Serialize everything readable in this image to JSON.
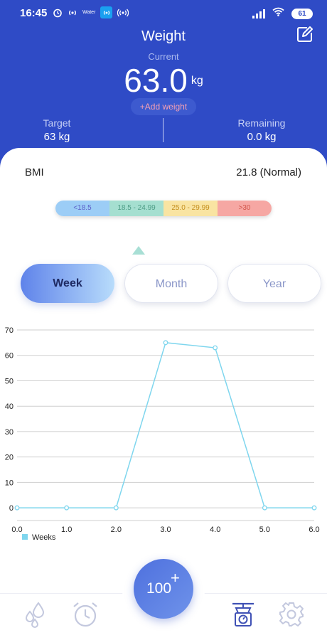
{
  "status_bar": {
    "time": "16:45",
    "water_label": "Water",
    "battery": "61"
  },
  "header": {
    "title": "Weight",
    "current_label": "Current",
    "current_value": "63.0",
    "current_unit": "kg",
    "add_weight_label": "+Add weight",
    "target_label": "Target",
    "target_value": "63 kg",
    "remaining_label": "Remaining",
    "remaining_value": "0.0 kg",
    "background_color": "#2f4bc6"
  },
  "bmi": {
    "label": "BMI",
    "value": "21.8 (Normal)",
    "ranges": [
      {
        "label": "<18.5",
        "color": "#9ccdf6"
      },
      {
        "label": "18.5 - 24.99",
        "color": "#a5dfd0"
      },
      {
        "label": "25.0 - 29.99",
        "color": "#f9e4a2"
      },
      {
        "label": ">30",
        "color": "#f6a7a3"
      }
    ]
  },
  "tabs": [
    {
      "label": "Week",
      "active": true
    },
    {
      "label": "Month",
      "active": false
    },
    {
      "label": "Year",
      "active": false
    }
  ],
  "chart_data": {
    "type": "line",
    "x": [
      0.0,
      1.0,
      2.0,
      3.0,
      4.0,
      5.0,
      6.0
    ],
    "series": [
      {
        "name": "Weeks",
        "values": [
          0,
          0,
          0,
          65,
          63,
          0,
          0
        ],
        "color": "#7fd6ee"
      }
    ],
    "x_tick_labels": [
      "0.0",
      "1.0",
      "2.0",
      "3.0",
      "4.0",
      "5.0",
      "6.0"
    ],
    "y_tick_labels": [
      "0",
      "10",
      "20",
      "30",
      "40",
      "50",
      "60",
      "70"
    ],
    "xlim": [
      0,
      6
    ],
    "ylim": [
      -5,
      70
    ],
    "grid": true,
    "legend_position": "bottom-left"
  },
  "fab": {
    "number": "100",
    "plus": "+"
  },
  "bottom_nav": {
    "icons": [
      "water-drops-icon",
      "alarm-clock-icon",
      "scale-icon",
      "settings-gear-icon"
    ],
    "active_color": "#3f51b5",
    "inactive_color": "#c3c8de"
  }
}
